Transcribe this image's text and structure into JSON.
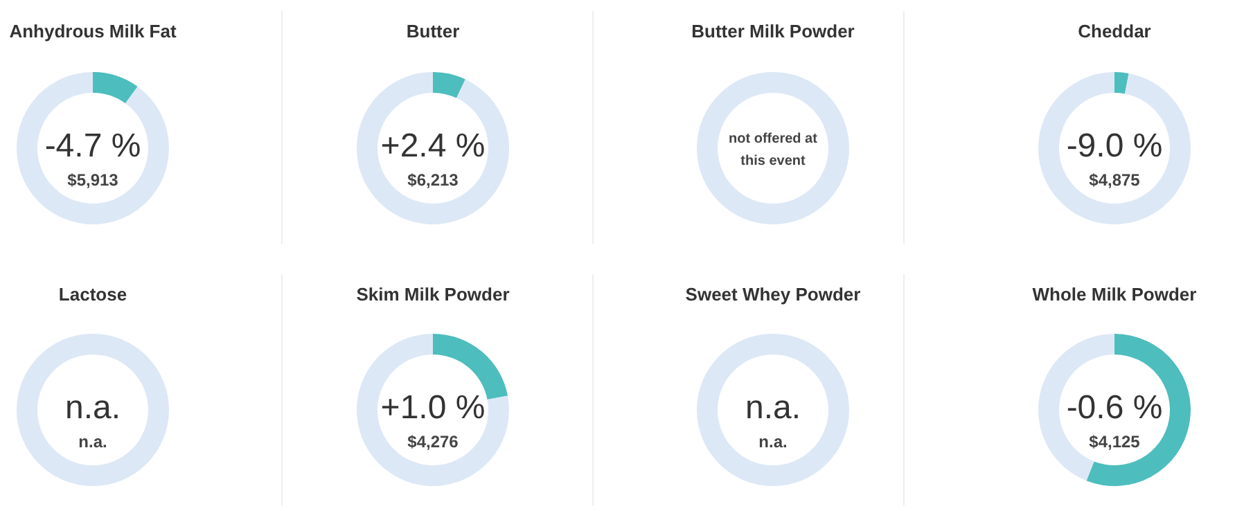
{
  "chart_data": [
    {
      "type": "donut",
      "title": "Anhydrous Milk Fat",
      "categories": [
        null,
        null
      ],
      "values": [
        10,
        90
      ],
      "colors": [
        "#4dbdbd",
        "#dde8f6"
      ],
      "annotations": [
        "-4.7 %",
        "$5,913"
      ]
    },
    {
      "type": "donut",
      "title": "Butter",
      "categories": [
        null,
        null
      ],
      "values": [
        7,
        93
      ],
      "colors": [
        "#4dbdbd",
        "#dde8f6"
      ],
      "annotations": [
        "+2.4 %",
        "$6,213"
      ]
    },
    {
      "type": "donut",
      "title": "Butter Milk Powder",
      "categories": [
        null
      ],
      "values": [
        100
      ],
      "colors": [
        "#dde8f6"
      ],
      "annotations": [
        "not offered at this event"
      ]
    },
    {
      "type": "donut",
      "title": "Cheddar",
      "categories": [
        null,
        null
      ],
      "values": [
        3,
        97
      ],
      "colors": [
        "#4dbdbd",
        "#dde8f6"
      ],
      "annotations": [
        "-9.0 %",
        "$4,875"
      ]
    },
    {
      "type": "donut",
      "title": "Lactose",
      "categories": [
        null
      ],
      "values": [
        100
      ],
      "colors": [
        "#dde8f6"
      ],
      "annotations": [
        "n.a.",
        "n.a."
      ]
    },
    {
      "type": "donut",
      "title": "Skim Milk Powder",
      "categories": [
        null,
        null
      ],
      "values": [
        22,
        78
      ],
      "colors": [
        "#4dbdbd",
        "#dde8f6"
      ],
      "annotations": [
        "+1.0 %",
        "$4,276"
      ]
    },
    {
      "type": "donut",
      "title": "Sweet Whey Powder",
      "categories": [
        null
      ],
      "values": [
        100
      ],
      "colors": [
        "#dde8f6"
      ],
      "annotations": [
        "n.a.",
        "n.a."
      ]
    },
    {
      "type": "donut",
      "title": "Whole Milk Powder",
      "categories": [
        null,
        null
      ],
      "values": [
        56,
        44
      ],
      "colors": [
        "#4dbdbd",
        "#dde8f6"
      ],
      "annotations": [
        "-0.6 %",
        "$4,125"
      ]
    }
  ]
}
